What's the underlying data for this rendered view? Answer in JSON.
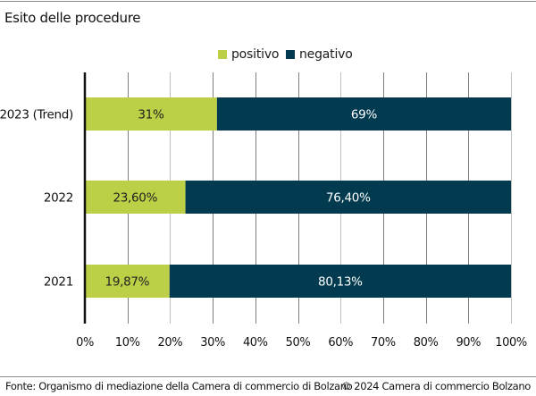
{
  "header": {
    "title": "Esito delle procedure"
  },
  "footer": {
    "source": "Fonte: Organismo di mediazione della Camera di commercio di Bolzano",
    "copyright": "© 2024 Camera di commercio Bolzano"
  },
  "colors": {
    "positivo": "#bdcf46",
    "negativo": "#023a4f",
    "gridline": "#7f7f7f",
    "gridline_alt": "#c0c0c0",
    "axis": "#111111"
  },
  "chart_data": {
    "type": "bar",
    "orientation": "horizontal",
    "stacked": true,
    "title": "Esito delle procedure",
    "xlabel": "",
    "ylabel": "",
    "xlim": [
      0,
      100
    ],
    "x_ticks": [
      "0%",
      "10%",
      "20%",
      "30%",
      "40%",
      "50%",
      "60%",
      "70%",
      "80%",
      "90%",
      "100%"
    ],
    "grid": true,
    "legend_position": "top-center",
    "categories": [
      "2023 (Trend)",
      "2022",
      "2021"
    ],
    "series": [
      {
        "name": "positivo",
        "values": [
          31,
          23.6,
          19.87
        ],
        "labels": [
          "31%",
          "23,60%",
          "19,87%"
        ]
      },
      {
        "name": "negativo",
        "values": [
          69,
          76.4,
          80.13
        ],
        "labels": [
          "69%",
          "76,40%",
          "80,13%"
        ]
      }
    ]
  }
}
